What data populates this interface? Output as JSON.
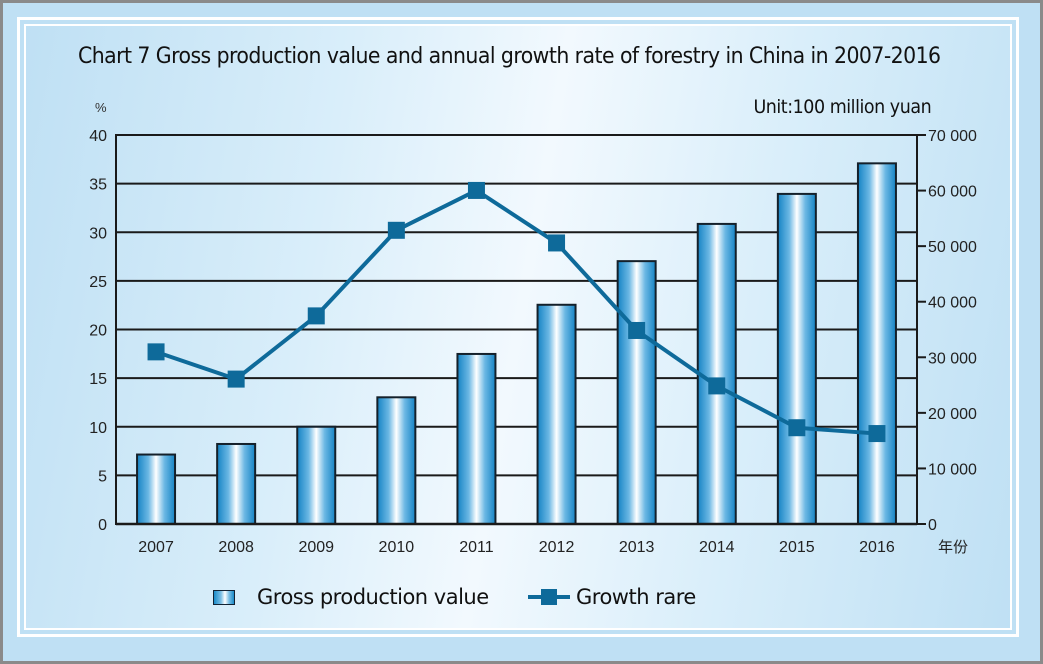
{
  "chart_data": {
    "type": "bar+line",
    "title": "Chart 7 Gross production value and annual growth rate of forestry in China in 2007-2016",
    "unit_label": "Unit:100 million yuan",
    "left_axis_unit": "%",
    "xlabel_suffix": "年份",
    "categories": [
      "2007",
      "2008",
      "2009",
      "2010",
      "2011",
      "2012",
      "2013",
      "2014",
      "2015",
      "2016"
    ],
    "series": [
      {
        "name": "Gross production value",
        "type": "bar",
        "axis": "right",
        "values": [
          12500,
          14400,
          17500,
          22800,
          30600,
          39450,
          47300,
          54000,
          59400,
          64900
        ],
        "color": "#1a8ac8"
      },
      {
        "name": "Growth rare",
        "type": "line",
        "axis": "left",
        "values": [
          17.7,
          14.9,
          21.4,
          30.2,
          34.3,
          28.9,
          19.9,
          14.2,
          9.9,
          9.3
        ],
        "color": "#0e6a9a"
      }
    ],
    "left_axis": {
      "ylim": [
        0,
        40
      ],
      "ticks": [
        "0",
        "5",
        "10",
        "15",
        "20",
        "25",
        "30",
        "35",
        "40"
      ],
      "tick_values": [
        0,
        5,
        10,
        15,
        20,
        25,
        30,
        35,
        40
      ]
    },
    "right_axis": {
      "ylim": [
        0,
        70000
      ],
      "ticks": [
        "0",
        "10 000",
        "20 000",
        "30 000",
        "40 000",
        "50 000",
        "60 000",
        "70 000"
      ],
      "tick_values": [
        0,
        10000,
        20000,
        30000,
        40000,
        50000,
        60000,
        70000
      ]
    },
    "grid": true,
    "legend_position": "bottom"
  }
}
